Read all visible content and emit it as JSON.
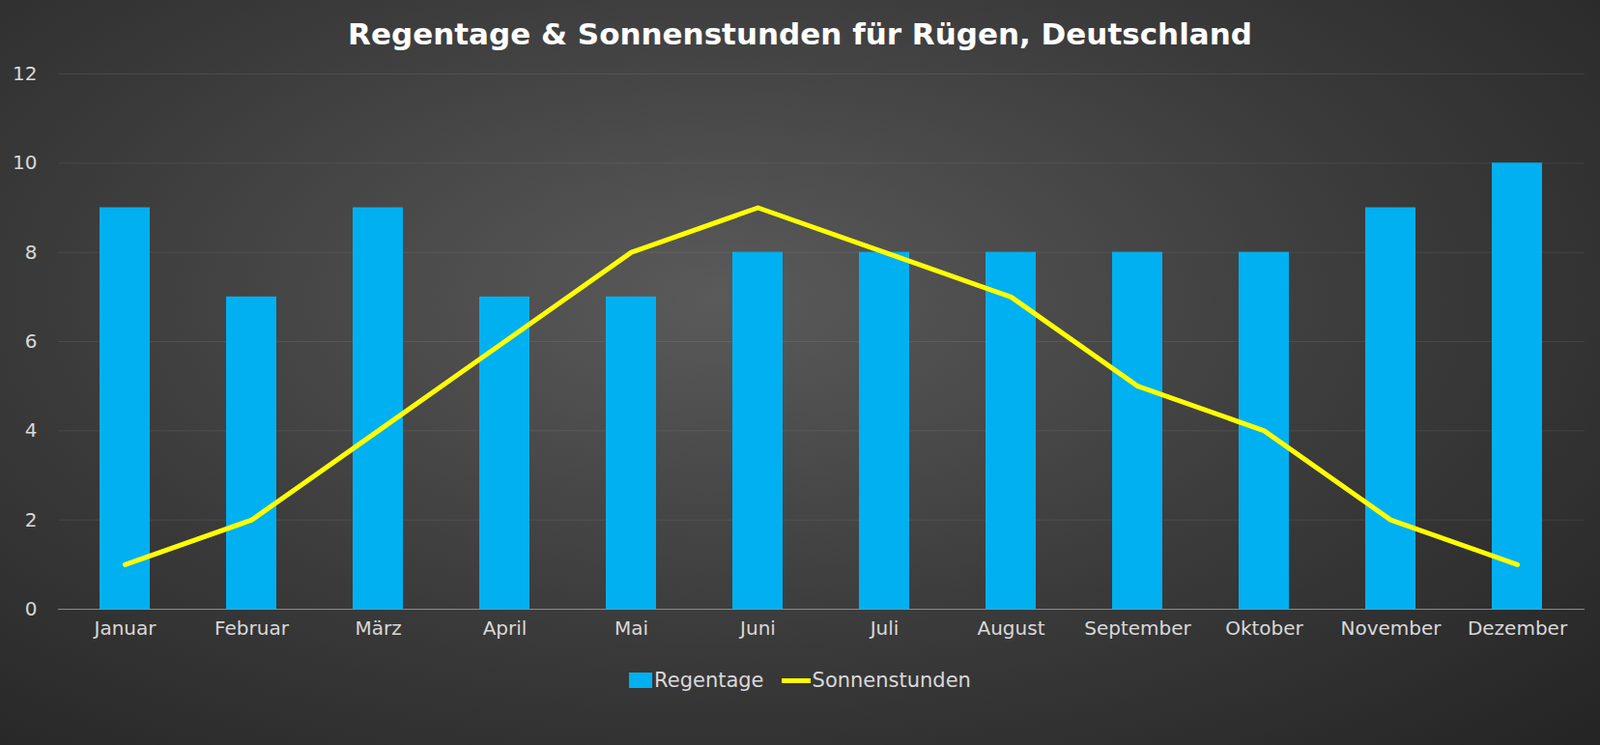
{
  "chart_data": {
    "type": "bar",
    "title": "Regentage & Sonnenstunden für Rügen, Deutschland",
    "categories": [
      "Januar",
      "Februar",
      "März",
      "April",
      "Mai",
      "Juni",
      "Juli",
      "August",
      "September",
      "Oktober",
      "November",
      "Dezember"
    ],
    "series": [
      {
        "name": "Regentage",
        "type": "bar",
        "color": "#00b0f0",
        "values": [
          9,
          7,
          9,
          7,
          7,
          8,
          8,
          8,
          8,
          8,
          9,
          10
        ]
      },
      {
        "name": "Sonnenstunden",
        "type": "line",
        "color": "#ffff00",
        "values": [
          1,
          2,
          4,
          6,
          8,
          9,
          8,
          7,
          5,
          4,
          2,
          1
        ]
      }
    ],
    "ylim": [
      0,
      12
    ],
    "yticks": [
      0,
      2,
      4,
      6,
      8,
      10,
      12
    ],
    "grid": true,
    "legend": "bottom"
  }
}
